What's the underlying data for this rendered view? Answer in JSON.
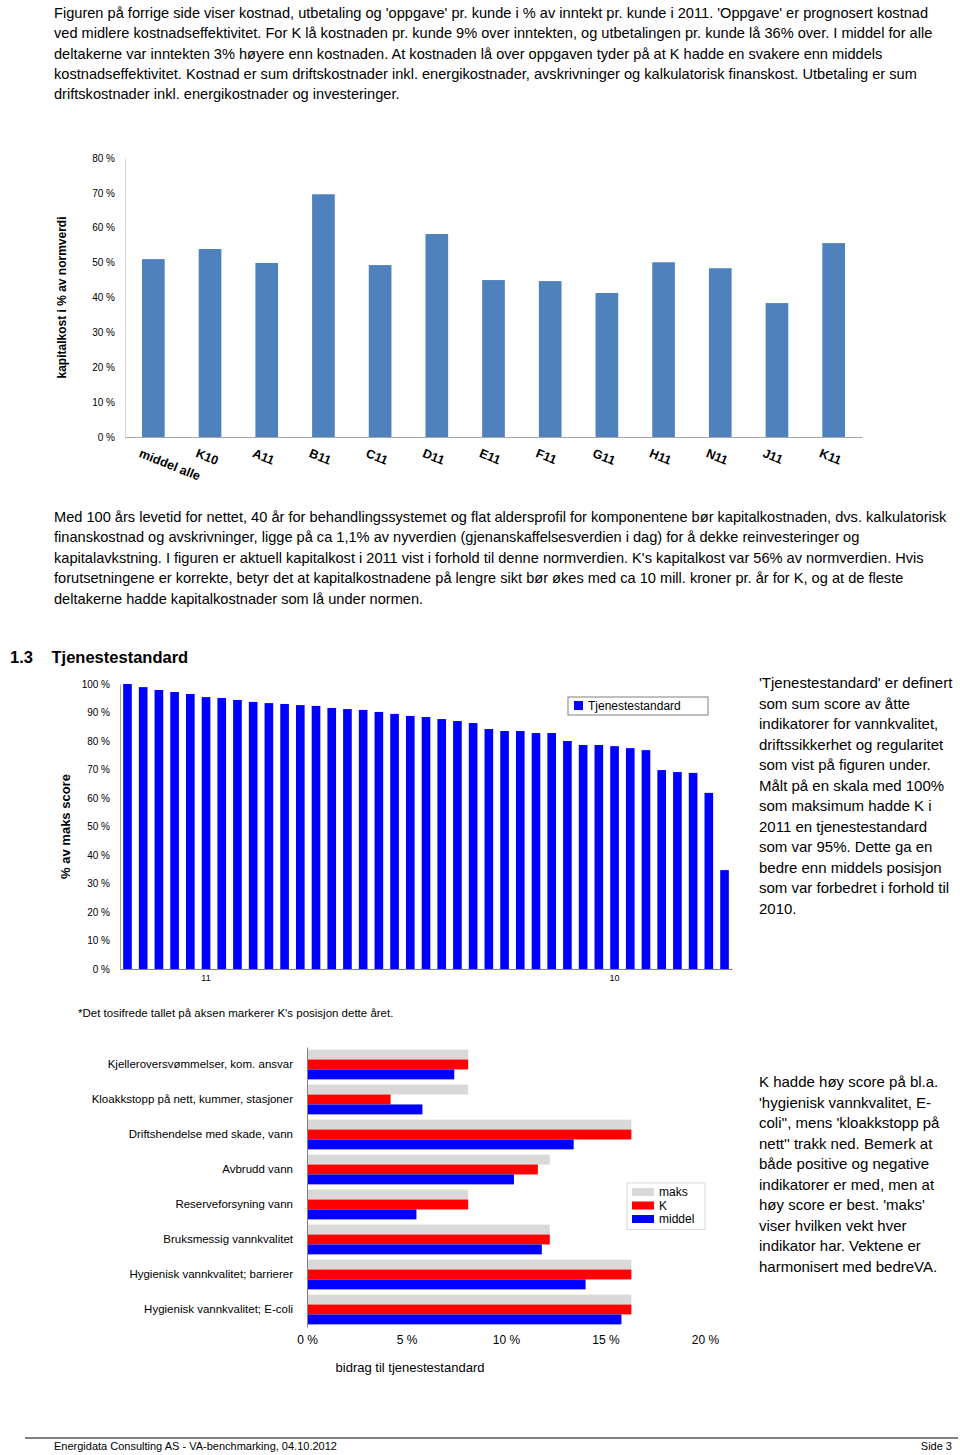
{
  "texts": {
    "intro": "Figuren på forrige side viser kostnad, utbetaling og 'oppgave' pr. kunde i % av inntekt pr. kunde i 2011. 'Oppgave' er prognosert kostnad ved midlere kostnadseffektivitet. For K lå kostnaden pr. kunde 9% over inntekten, og utbetalingen pr. kunde lå 36% over. I middel for alle deltakerne var inntekten 3% høyere enn kostnaden. At kostnaden lå over oppgaven tyder på at K hadde en svakere enn middels kostnadseffektivitet. Kostnad er sum driftskostnader inkl. energikostnader, avskrivninger og kalkulatorisk finanskost. Utbetaling er sum driftskostnader inkl. energikostnader og investeringer.",
    "capital_note": "Med 100 års levetid for nettet, 40 år for behandlingssystemet og flat aldersprofil for komponentene bør kapitalkostnaden, dvs. kalkulatorisk finanskostnad og avskrivninger, ligge på ca 1,1% av nyverdien (gjenanskaffelsesverdien i dag) for å dekke reinvesteringer og kapitalavkstning. I figuren er aktuell kapitalkost i 2011 vist i forhold til denne normverdien. K's kapitalkost var 56% av normverdien. Hvis forutsetningene er korrekte, betyr det at kapitalkostnadene på lengre sikt bør økes med ca 10 mill. kroner pr. år for K, og at de fleste deltakerne hadde kapitalkostnader som lå under normen.",
    "section_heading": "1.3 Tjenestestandard",
    "service_note": "'Tjenestestandard' er definert som sum score av åtte indikatorer for vannkvalitet, driftssikkerhet og regularitet som vist på figuren under. Målt på en skala med 100% som maksimum hadde K i 2011 en tjenestestandard som var 95%. Dette ga en bedre enn middels posisjon som var forbedret i forhold til 2010.",
    "footnote": "*Det tosifrede tallet på aksen markerer K's posisjon dette året.",
    "indicator_note": "K hadde høy score på bl.a. 'hygienisk vannkvalitet, E-coli'', mens 'kloakkstopp på nett'' trakk ned. Bemerk at både positive og negative indikatorer er med, men at høy score er best. 'maks' viser hvilken vekt hver indikator har. Vektene er harmonisert med bedreVA."
  },
  "footer": {
    "left": "Energidata Consulting AS - VA-benchmarking, 04.10.2012",
    "right": "Side 3"
  },
  "chart_data": [
    {
      "type": "bar",
      "y_label": "kapitalkost i % av normverdi",
      "categories": [
        "middel alle",
        "K10",
        "A11",
        "B11",
        "C11",
        "D11",
        "E11",
        "F11",
        "G11",
        "H11",
        "N11",
        "J11",
        "K11"
      ],
      "values": [
        51.0,
        53.9,
        49.9,
        69.6,
        49.3,
        58.2,
        45.0,
        44.7,
        41.3,
        50.1,
        48.4,
        38.4,
        55.6
      ],
      "color": "#4f81bd",
      "ylim": [
        0,
        80
      ],
      "yticks": [
        {
          "value": 0,
          "label": "0 %"
        },
        {
          "value": 10,
          "label": "10 %"
        },
        {
          "value": 20,
          "label": "20 %"
        },
        {
          "value": 30,
          "label": "30 %"
        },
        {
          "value": 40,
          "label": "40 %"
        },
        {
          "value": 50,
          "label": "50 %"
        },
        {
          "value": 60,
          "label": "60 %"
        },
        {
          "value": 70,
          "label": "70 %"
        },
        {
          "value": 80,
          "label": "80 %"
        }
      ]
    },
    {
      "type": "bar",
      "y_label": "% av maks score",
      "categories": [
        null,
        null,
        null,
        null,
        null,
        "11",
        null,
        null,
        null,
        null,
        null,
        null,
        null,
        null,
        null,
        null,
        null,
        null,
        null,
        null,
        null,
        null,
        null,
        null,
        null,
        null,
        null,
        null,
        null,
        null,
        null,
        "10",
        null,
        null,
        null,
        null,
        null,
        null,
        null
      ],
      "series": [
        {
          "name": "Tjenestestandard",
          "color": "#0000ff",
          "values": [
            100,
            98.9,
            97.9,
            97.2,
            96.5,
            95.4,
            95.1,
            94.4,
            93.7,
            93.3,
            93.0,
            92.6,
            92.3,
            91.6,
            91.2,
            90.9,
            90.2,
            89.5,
            88.8,
            88.4,
            87.7,
            87.0,
            86.3,
            84.2,
            83.5,
            83.5,
            82.8,
            82.8,
            80.0,
            78.6,
            78.6,
            78.2,
            77.5,
            76.8,
            69.8,
            69.1,
            68.8,
            61.8,
            34.7
          ]
        }
      ],
      "legend": "top-right",
      "ylim": [
        0,
        100
      ],
      "yticks": [
        {
          "value": 0,
          "label": "0 %"
        },
        {
          "value": 10,
          "label": "10 %"
        },
        {
          "value": 20,
          "label": "20 %"
        },
        {
          "value": 30,
          "label": "30 %"
        },
        {
          "value": 40,
          "label": "40 %"
        },
        {
          "value": 50,
          "label": "50 %"
        },
        {
          "value": 60,
          "label": "60 %"
        },
        {
          "value": 70,
          "label": "70 %"
        },
        {
          "value": 80,
          "label": "80 %"
        },
        {
          "value": 90,
          "label": "90 %"
        },
        {
          "value": 100,
          "label": "100 %"
        }
      ]
    },
    {
      "type": "bar",
      "orientation": "horizontal",
      "x_label": "bidrag til tjenestestandard",
      "categories": [
        "Kjelleroversvømmelser, kom. ansvar",
        "Kloakkstopp på nett, kummer, stasjoner",
        "Driftshendelse med skade, vann",
        "Avbrudd vann",
        "Reserveforsyning vann",
        "Bruksmessig vannkvalitet",
        "Hygienisk vannkvalitet; barrierer",
        "Hygienisk vannkvalitet; E-coli"
      ],
      "series": [
        {
          "name": "maks",
          "color": "#d9d9d9",
          "values": [
            8.1,
            8.1,
            16.3,
            12.2,
            8.1,
            12.2,
            16.3,
            16.3
          ]
        },
        {
          "name": "K",
          "color": "#ff0000",
          "values": [
            8.1,
            4.2,
            16.3,
            11.6,
            8.1,
            12.2,
            16.3,
            16.3
          ]
        },
        {
          "name": "middel",
          "color": "#0000ff",
          "values": [
            7.4,
            5.8,
            13.4,
            10.4,
            5.5,
            11.8,
            14.0,
            15.8
          ]
        }
      ],
      "legend": "right",
      "xlim": [
        0,
        20
      ],
      "xticks": [
        {
          "value": 0,
          "label": "0 %"
        },
        {
          "value": 5,
          "label": "5 %"
        },
        {
          "value": 10,
          "label": "10 %"
        },
        {
          "value": 15,
          "label": "15 %"
        },
        {
          "value": 20,
          "label": "20 %"
        }
      ]
    }
  ]
}
